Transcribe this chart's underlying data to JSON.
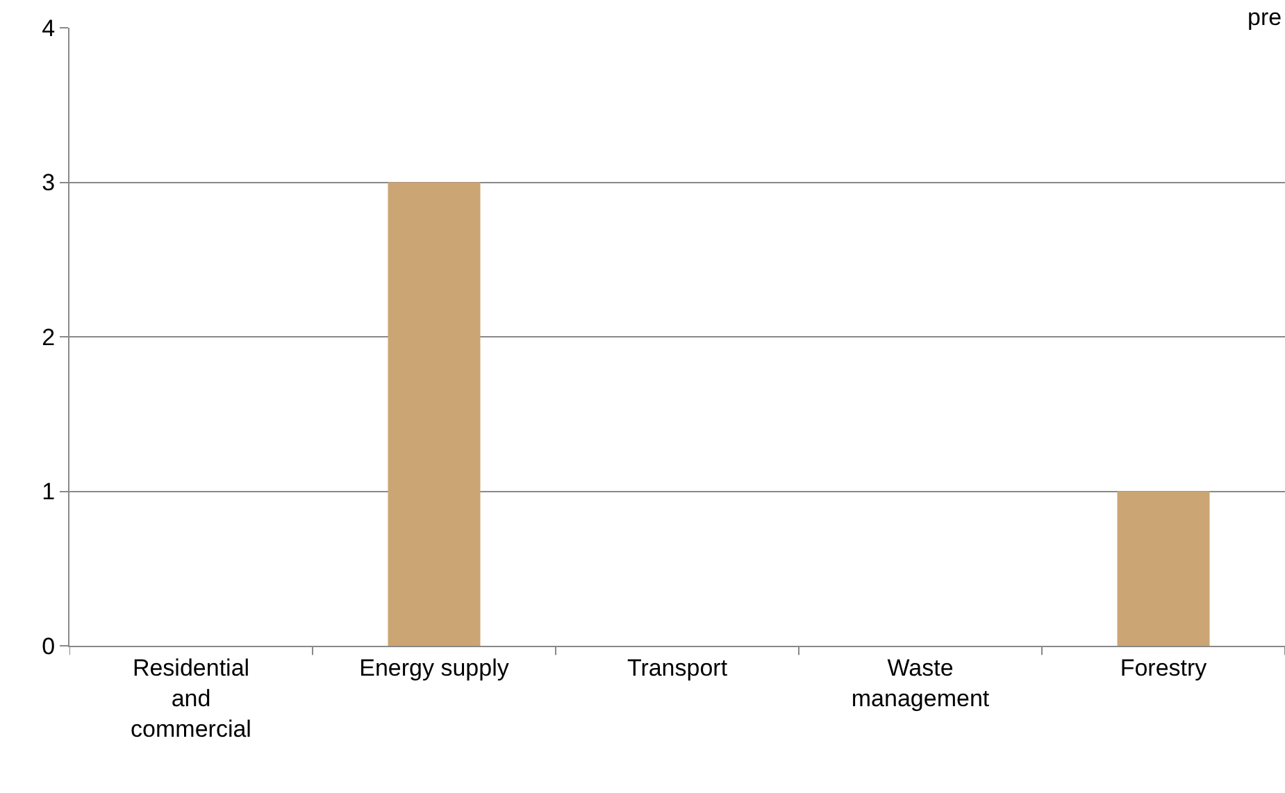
{
  "chart_data": {
    "type": "bar",
    "categories": [
      "Residential and commercial",
      "Energy supply",
      "Transport",
      "Waste management",
      "Forestry"
    ],
    "values": [
      0,
      3,
      0,
      0,
      1
    ],
    "color": "#cba574",
    "ylim": [
      0,
      4
    ],
    "yticks": [
      0,
      1,
      2,
      3,
      4
    ],
    "grid": "y",
    "legend": false,
    "annotations": [
      "pre"
    ]
  }
}
